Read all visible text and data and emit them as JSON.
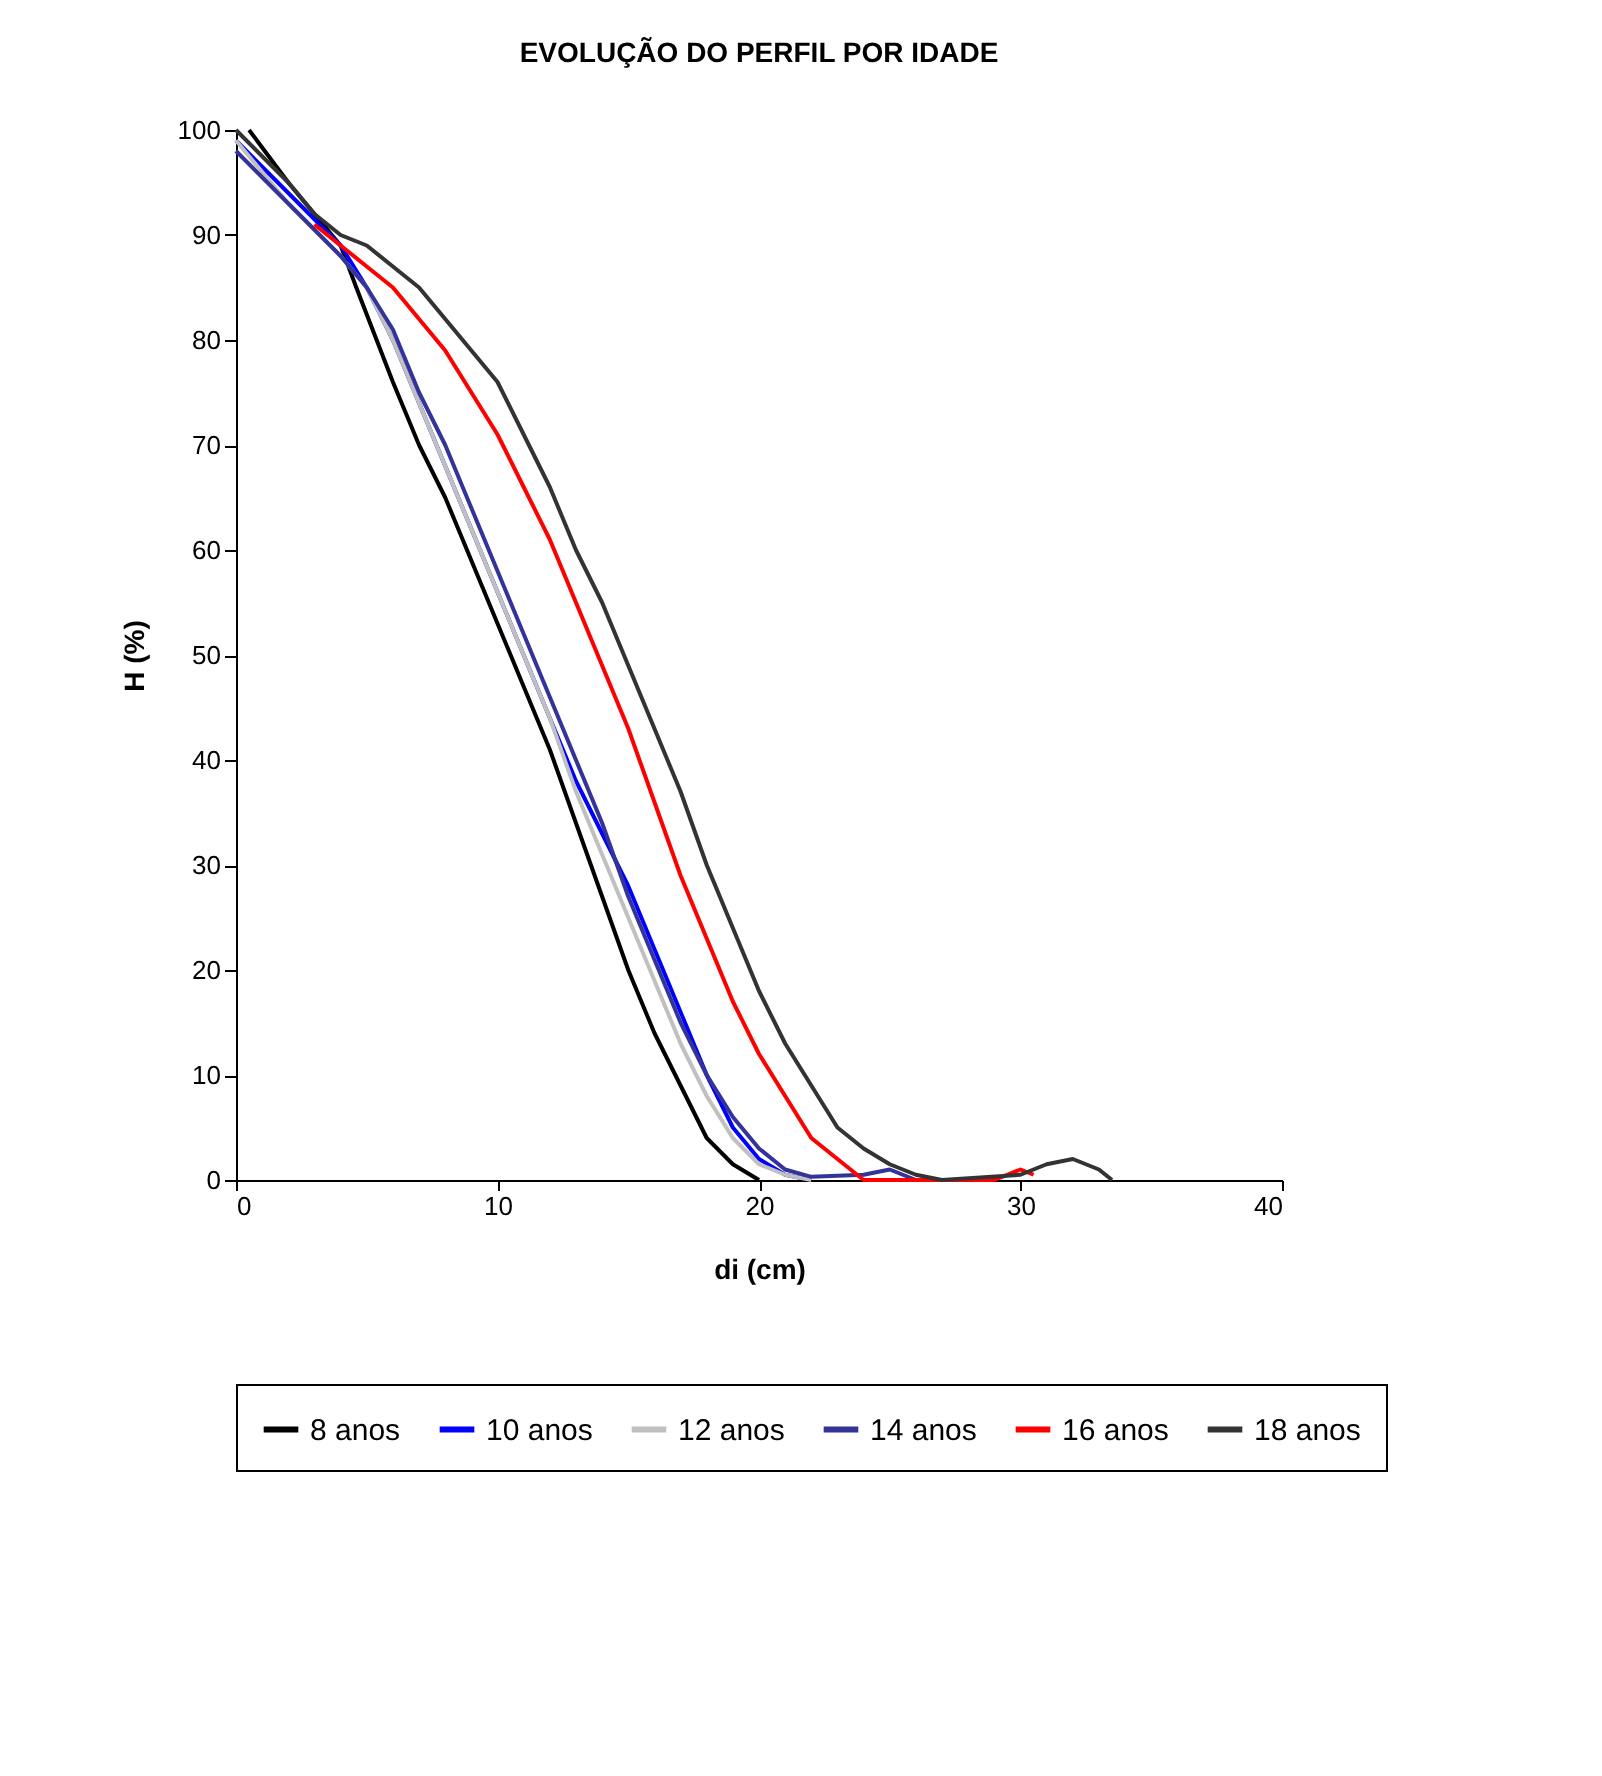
{
  "chart_data": {
    "type": "line",
    "title": "EVOLUÇÃO DO PERFIL POR IDADE",
    "xlabel": "di (cm)",
    "ylabel": "H (%)",
    "xlim": [
      0,
      40
    ],
    "xticks": [
      0,
      10,
      20,
      30,
      40
    ],
    "ylim": [
      0,
      100
    ],
    "yticks": [
      0,
      10,
      20,
      30,
      40,
      50,
      60,
      70,
      80,
      90,
      100
    ],
    "grid": false,
    "legend": "bottom",
    "marker": "none",
    "line_style": "solid",
    "series": [
      {
        "name": "8 anos",
        "color": "#000000",
        "x": [
          0.5,
          2,
          4,
          4.6,
          6,
          7,
          8,
          9,
          10,
          11,
          12,
          13,
          14,
          15,
          16,
          17,
          18,
          19,
          20
        ],
        "values": [
          100,
          95,
          89,
          85,
          76,
          70,
          65,
          59,
          53,
          47,
          41,
          34,
          27,
          20,
          14,
          9,
          4,
          1.5,
          0
        ]
      },
      {
        "name": "10 anos",
        "color": "#0000ff",
        "x": [
          0,
          2,
          4,
          5,
          6,
          7,
          8,
          9,
          10,
          11,
          12,
          13,
          14,
          15,
          16,
          17,
          18,
          19,
          20,
          21,
          22
        ],
        "values": [
          99,
          94,
          89,
          85,
          80,
          74,
          68,
          62,
          56,
          50,
          44,
          38,
          33,
          28,
          22,
          16,
          10,
          5,
          2,
          0.5,
          0
        ]
      },
      {
        "name": "12 anos",
        "color": "#c0c0c0",
        "x": [
          0,
          2,
          4,
          5,
          6,
          7,
          8,
          9,
          10,
          11,
          12,
          13,
          14,
          15,
          16,
          17,
          18,
          19,
          20,
          21,
          22
        ],
        "values": [
          99,
          93,
          88,
          85,
          80,
          74,
          68,
          62,
          56,
          50,
          44,
          37,
          31,
          25,
          19,
          13,
          8,
          4,
          1.5,
          0.5,
          0
        ]
      },
      {
        "name": "14 anos",
        "color": "#333399",
        "x": [
          0,
          2,
          4,
          5,
          6,
          7,
          8,
          9,
          10,
          11,
          12,
          13,
          14,
          15,
          16,
          17,
          18,
          19,
          20,
          21,
          22,
          24,
          25,
          26
        ],
        "values": [
          98,
          93,
          88,
          85,
          81,
          75,
          70,
          64,
          58,
          52,
          46,
          40,
          34,
          27,
          21,
          15,
          10,
          6,
          3,
          1,
          0.3,
          0.5,
          1,
          0
        ]
      },
      {
        "name": "16 anos",
        "color": "#ff0000",
        "x": [
          3,
          4,
          5,
          6,
          7,
          8,
          9,
          10,
          11,
          12,
          13,
          14,
          15,
          16,
          17,
          18,
          19,
          20,
          21,
          22,
          23,
          24,
          29,
          30,
          30.5
        ],
        "values": [
          91,
          89,
          87,
          85,
          82,
          79,
          75,
          71,
          66,
          61,
          55,
          49,
          43,
          36,
          29,
          23,
          17,
          12,
          8,
          4,
          2,
          0,
          0,
          1,
          0.5
        ]
      },
      {
        "name": "18 anos",
        "color": "#333333",
        "x": [
          0,
          2,
          3,
          4,
          5,
          6,
          7,
          8,
          9,
          10,
          11,
          12,
          13,
          14,
          15,
          16,
          17,
          18,
          19,
          20,
          21,
          22,
          23,
          24,
          25,
          26,
          27,
          30,
          31,
          32,
          33,
          33.5
        ],
        "values": [
          100,
          95,
          92,
          90,
          89,
          87,
          85,
          82,
          79,
          76,
          71,
          66,
          60,
          55,
          49,
          43,
          37,
          30,
          24,
          18,
          13,
          9,
          5,
          3,
          1.5,
          0.5,
          0,
          0.5,
          1.5,
          2,
          1,
          0
        ]
      }
    ]
  }
}
